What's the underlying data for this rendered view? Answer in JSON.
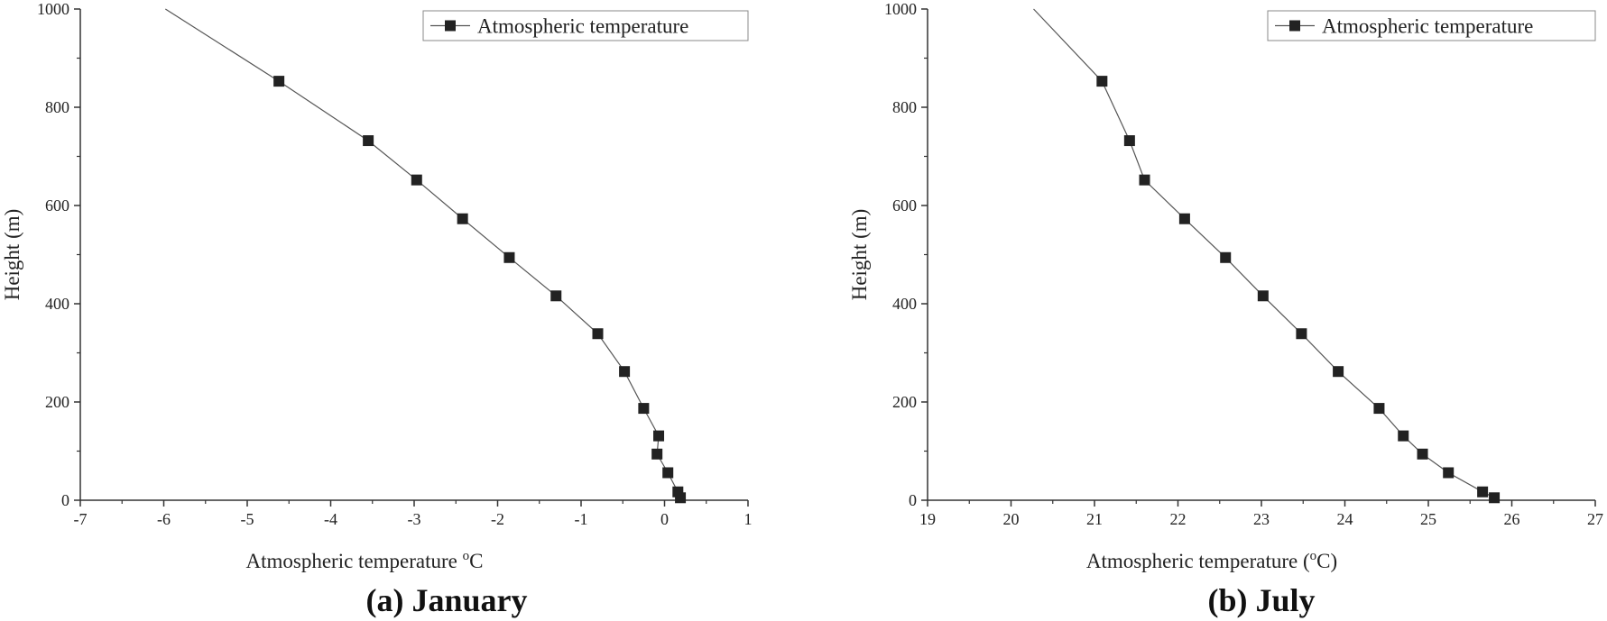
{
  "chart_data": [
    {
      "type": "line",
      "panel": "a",
      "caption": "(a) January",
      "xlabel": "Atmospheric temperature",
      "xlabel_sup": "o",
      "xlabel_after": "C",
      "ylabel": "Height (m)",
      "xlim": [
        -7,
        1
      ],
      "ylim": [
        0,
        1000
      ],
      "xticks": [
        "-7",
        "-6",
        "-5",
        "-4",
        "-3",
        "-2",
        "-1",
        "0",
        "1"
      ],
      "yticks": [
        "0",
        "200",
        "400",
        "600",
        "800",
        "1000"
      ],
      "legend": {
        "label": "Atmospheric temperature",
        "position": "top-right"
      },
      "line_x": [
        -5.98,
        -4.62,
        -3.55,
        -2.97,
        -2.42,
        -1.86,
        -1.3,
        -0.8,
        -0.48,
        -0.25,
        -0.07,
        -0.09,
        0.04,
        0.16,
        0.19
      ],
      "line_y": [
        1000,
        853,
        732,
        652,
        573,
        494,
        416,
        339,
        262,
        187,
        131,
        94,
        56,
        17,
        5
      ],
      "points_x": [
        -4.62,
        -3.55,
        -2.97,
        -2.42,
        -1.86,
        -1.3,
        -0.8,
        -0.48,
        -0.25,
        -0.07,
        -0.09,
        0.04,
        0.16,
        0.19
      ],
      "points_y": [
        853,
        732,
        652,
        573,
        494,
        416,
        339,
        262,
        187,
        131,
        94,
        56,
        17,
        5
      ]
    },
    {
      "type": "line",
      "panel": "b",
      "caption": "(b) July",
      "xlabel": "Atmospheric temperature (",
      "xlabel_sup": "o",
      "xlabel_after": "C)",
      "ylabel": "Height (m)",
      "xlim": [
        19,
        27
      ],
      "ylim": [
        0,
        1000
      ],
      "xticks": [
        "19",
        "20",
        "21",
        "22",
        "23",
        "24",
        "25",
        "26",
        "27"
      ],
      "yticks": [
        "0",
        "200",
        "400",
        "600",
        "800",
        "1000"
      ],
      "legend": {
        "label": "Atmospheric temperature",
        "position": "top-right"
      },
      "line_x": [
        20.27,
        21.09,
        21.42,
        21.6,
        22.08,
        22.57,
        23.02,
        23.48,
        23.92,
        24.41,
        24.7,
        24.93,
        25.24,
        25.65,
        25.79
      ],
      "line_y": [
        1000,
        853,
        732,
        652,
        573,
        494,
        416,
        339,
        262,
        187,
        131,
        94,
        56,
        17,
        5
      ],
      "points_x": [
        21.09,
        21.42,
        21.6,
        22.08,
        22.57,
        23.02,
        23.48,
        23.92,
        24.41,
        24.7,
        24.93,
        25.24,
        25.65,
        25.79
      ],
      "points_y": [
        853,
        732,
        652,
        573,
        494,
        416,
        339,
        262,
        187,
        131,
        94,
        56,
        17,
        5
      ]
    }
  ]
}
